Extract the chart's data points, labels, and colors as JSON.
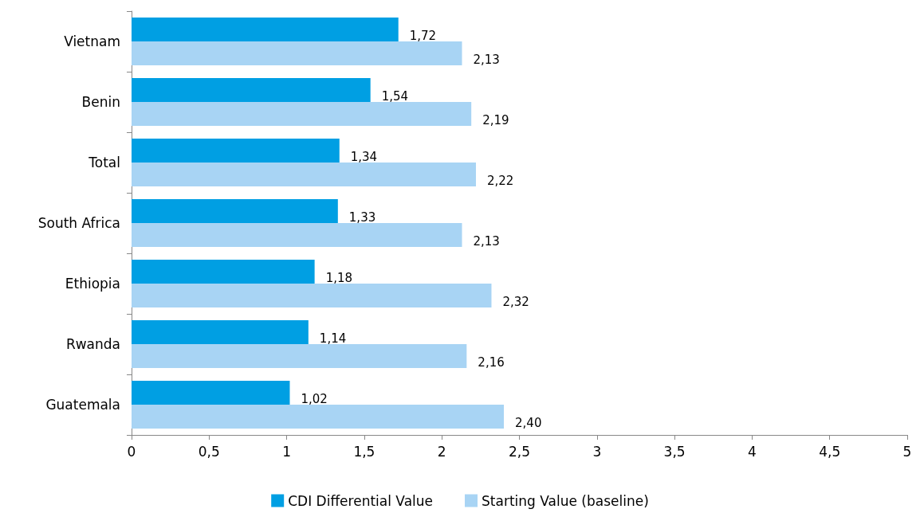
{
  "chart_data": {
    "type": "bar",
    "orientation": "horizontal",
    "categories": [
      "Vietnam",
      "Benin",
      "Total",
      "South Africa",
      "Ethiopia",
      "Rwanda",
      "Guatemala"
    ],
    "series": [
      {
        "name": "CDI Differential Value",
        "color": "#009fe3",
        "values": [
          1.72,
          1.54,
          1.34,
          1.33,
          1.18,
          1.14,
          1.02
        ],
        "value_labels": [
          "1,72",
          "1,54",
          "1,34",
          "1,33",
          "1,18",
          "1,14",
          "1,02"
        ]
      },
      {
        "name": "Starting Value (baseline)",
        "color": "#a8d4f4",
        "values": [
          2.13,
          2.19,
          2.22,
          2.13,
          2.32,
          2.16,
          2.4
        ],
        "value_labels": [
          "2,13",
          "2,19",
          "2,22",
          "2,13",
          "2,32",
          "2,16",
          "2,40"
        ]
      }
    ],
    "xlim": [
      0,
      5
    ],
    "xticks": [
      0,
      {
        "value": 0.5,
        "label": "0,5"
      },
      1,
      {
        "value": 1.5,
        "label": "1,5"
      },
      2,
      {
        "value": 2.5,
        "label": "2,5"
      },
      3,
      {
        "value": 3.5,
        "label": "3,5"
      },
      4,
      {
        "value": 4.5,
        "label": "4,5"
      },
      5
    ],
    "grid": false,
    "legend": "bottom"
  }
}
